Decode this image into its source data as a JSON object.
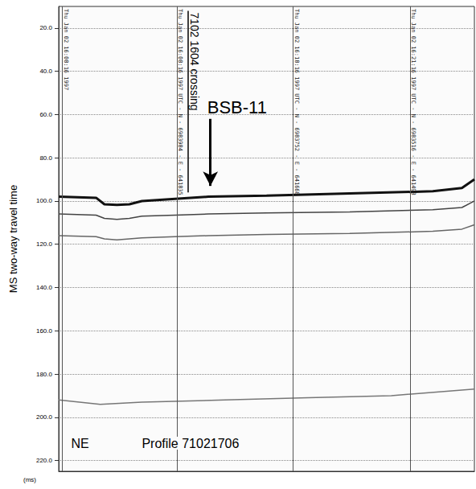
{
  "chart_data": {
    "type": "line",
    "y_label": "MS two-way travel time",
    "y_unit": "(ms)",
    "ylim": [
      10,
      225
    ],
    "yticks": [
      {
        "value": 20,
        "label": "20.0"
      },
      {
        "value": 40,
        "label": "40.0"
      },
      {
        "value": 60,
        "label": "60.0"
      },
      {
        "value": 80,
        "label": "80.0"
      },
      {
        "value": 100,
        "label": "100.0"
      },
      {
        "value": 120,
        "label": "120.0"
      },
      {
        "value": 140,
        "label": "140.0"
      },
      {
        "value": 160,
        "label": "160.0"
      },
      {
        "value": 180,
        "label": "180.0"
      },
      {
        "value": 200,
        "label": "200.0"
      },
      {
        "value": 220,
        "label": "220.0"
      }
    ],
    "xlim": [
      0,
      100
    ],
    "tick_labels": "y",
    "grid": true,
    "series": [
      {
        "color": "#111111",
        "x": [
          0,
          9,
          11,
          14,
          17,
          20,
          28,
          36,
          50,
          70,
          90,
          97,
          100
        ],
        "values": [
          98,
          98.5,
          101.5,
          101.8,
          101.5,
          100,
          99,
          98,
          97.5,
          96.5,
          95.5,
          94,
          90
        ]
      },
      {
        "color": "#444444",
        "x": [
          0,
          9,
          11,
          14,
          17,
          20,
          28,
          36,
          50,
          70,
          90,
          97,
          100
        ],
        "values": [
          106,
          106.5,
          108,
          108.5,
          108,
          107,
          106.5,
          106,
          105.5,
          105,
          104,
          103,
          100
        ]
      },
      {
        "color": "#666666",
        "x": [
          0,
          9,
          11,
          14,
          17,
          20,
          28,
          36,
          50,
          70,
          90,
          97,
          100
        ],
        "values": [
          116,
          116.5,
          117.5,
          118,
          117.5,
          117,
          116.5,
          116,
          115.5,
          115,
          114,
          113,
          111
        ]
      },
      {
        "color": "#777777",
        "x": [
          0,
          5,
          10,
          20,
          40,
          60,
          80,
          100
        ],
        "values": [
          192,
          193,
          194,
          193,
          192,
          191,
          190,
          187
        ]
      }
    ],
    "markers": [
      {
        "x": 0.8,
        "label": "Thu Jan 02 16:08:16 1997"
      },
      {
        "x": 28.4,
        "label": "Thu Jan 02 16:08:16 1997 UTC - N - 6983984 - E - 641835"
      },
      {
        "x": 56.3,
        "label": "Thu Jan 02 16:18:16 1997 UTC - N - 6983752 - E - 641668"
      },
      {
        "x": 84.5,
        "label": "Thu Jan 02 16:21:16 1997 UTC - N - 6983516 - E - 641498"
      }
    ],
    "crossing": {
      "text": "7102 1604 crossing",
      "x": 31,
      "y": [
        12,
        96
      ]
    },
    "arrow": {
      "text": "BSB-11",
      "x": 36.5,
      "y": [
        62,
        93
      ]
    },
    "annotations": [
      {
        "text": "NE",
        "x": 3,
        "y": 212
      },
      {
        "text": "Profile 71021706",
        "x": 20,
        "y": 212
      }
    ]
  }
}
